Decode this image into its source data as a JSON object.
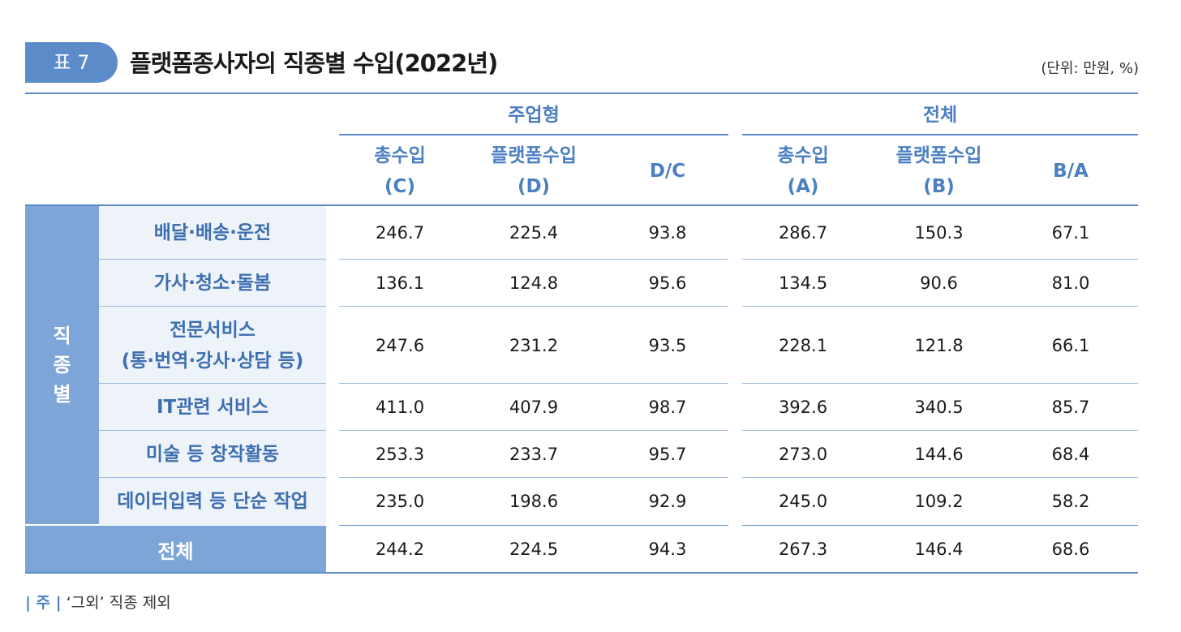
{
  "table_label": "표 7",
  "title": "플랫폼종사자의 직종별 수입(2022년)",
  "unit": "(단위: 만원, %)",
  "groups": [
    "주업형",
    "전체"
  ],
  "subheaders": [
    {
      "line1": "총수입",
      "line2": "(C)"
    },
    {
      "line1": "플랫폼수입",
      "line2": "(D)"
    },
    {
      "line1": "D/C",
      "line2": ""
    },
    {
      "line1": "총수입",
      "line2": "(A)"
    },
    {
      "line1": "플랫폼수입",
      "line2": "(B)"
    },
    {
      "line1": "B/A",
      "line2": ""
    }
  ],
  "side_label": [
    "직",
    "종",
    "별"
  ],
  "rows": [
    {
      "label1": "배달·배송·운전",
      "label2": "",
      "values": [
        "246.7",
        "225.4",
        "93.8",
        "286.7",
        "150.3",
        "67.1"
      ]
    },
    {
      "label1": "가사·청소·돌봄",
      "label2": "",
      "values": [
        "136.1",
        "124.8",
        "95.6",
        "134.5",
        "90.6",
        "81.0"
      ]
    },
    {
      "label1": "전문서비스",
      "label2": "(통·번역·강사·상담 등)",
      "values": [
        "247.6",
        "231.2",
        "93.5",
        "228.1",
        "121.8",
        "66.1"
      ]
    },
    {
      "label1": "IT관련 서비스",
      "label2": "",
      "values": [
        "411.0",
        "407.9",
        "98.7",
        "392.6",
        "340.5",
        "85.7"
      ]
    },
    {
      "label1": "미술 등 창작활동",
      "label2": "",
      "values": [
        "253.3",
        "233.7",
        "95.7",
        "273.0",
        "144.6",
        "68.4"
      ]
    },
    {
      "label1": "데이터입력 등 단순 작업",
      "label2": "",
      "values": [
        "235.0",
        "198.6",
        "92.9",
        "245.0",
        "109.2",
        "58.2"
      ]
    }
  ],
  "total": {
    "label": "전체",
    "values": [
      "244.2",
      "224.5",
      "94.3",
      "267.3",
      "146.4",
      "68.6"
    ]
  },
  "note": {
    "tag": "| 주 |",
    "text": "‘그외’ 직종 제외"
  },
  "colors": {
    "accent": "#5b8bc9",
    "header_text": "#4a7fc1",
    "side_fill": "#7ea5d8",
    "label_fill": "#eef3fa"
  }
}
